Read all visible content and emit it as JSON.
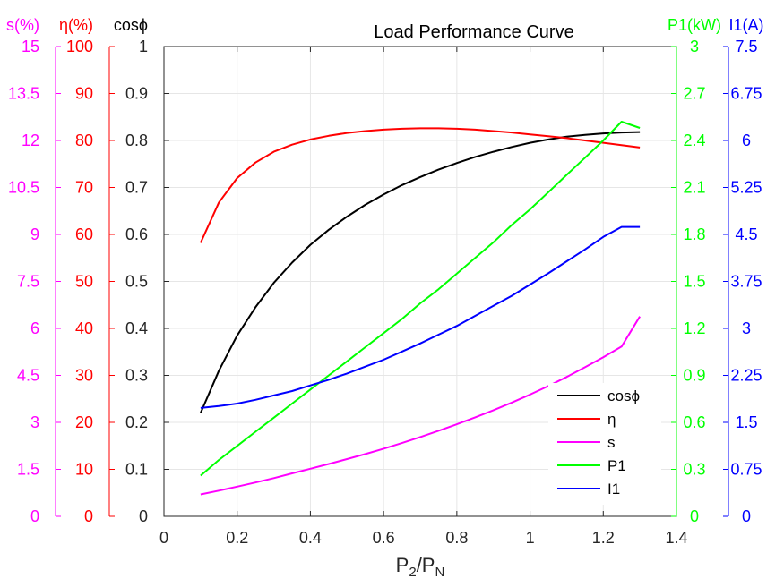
{
  "chart_data": {
    "type": "line",
    "title": "Load Performance Curve",
    "xlabel": {
      "main": "P",
      "sub1": "2",
      "slash": "/P",
      "sub2": "N"
    },
    "xlim": [
      0,
      1.4
    ],
    "xticks": [
      0,
      0.2,
      0.4,
      0.6,
      0.8,
      1,
      1.2,
      1.4
    ],
    "xtick_labels": [
      "0",
      "0.2",
      "0.4",
      "0.6",
      "0.8",
      "1",
      "1.2",
      "1.4"
    ],
    "grid": true,
    "axes": [
      {
        "key": "s",
        "label": "s(%)",
        "color": "#ff00ff",
        "side": "left",
        "lim": [
          0,
          15
        ],
        "tick_labels": [
          "0",
          "1.5",
          "3",
          "4.5",
          "6",
          "7.5",
          "9",
          "10.5",
          "12",
          "13.5",
          "15"
        ]
      },
      {
        "key": "eta",
        "label": "η(%)",
        "color": "#ff0000",
        "side": "left",
        "lim": [
          0,
          100
        ],
        "tick_labels": [
          "0",
          "10",
          "20",
          "30",
          "40",
          "50",
          "60",
          "70",
          "80",
          "90",
          "100"
        ]
      },
      {
        "key": "cos",
        "label": "cosϕ",
        "color": "#000000",
        "side": "left",
        "lim": [
          0,
          1
        ],
        "tick_labels": [
          "0",
          "0.1",
          "0.2",
          "0.3",
          "0.4",
          "0.5",
          "0.6",
          "0.7",
          "0.8",
          "0.9",
          "1"
        ]
      },
      {
        "key": "p1",
        "label": "P1(kW)",
        "color": "#00ff00",
        "side": "right",
        "lim": [
          0,
          3
        ],
        "tick_labels": [
          "0",
          "0.3",
          "0.6",
          "0.9",
          "1.2",
          "1.5",
          "1.8",
          "2.1",
          "2.4",
          "2.7",
          "3"
        ]
      },
      {
        "key": "i1",
        "label": "I1(A)",
        "color": "#0000ff",
        "side": "right",
        "lim": [
          0,
          7.5
        ],
        "tick_labels": [
          "0",
          "0.75",
          "1.5",
          "2.25",
          "3",
          "3.75",
          "4.5",
          "5.25",
          "6",
          "6.75",
          "7.5"
        ]
      }
    ],
    "x": [
      0.1,
      0.15,
      0.2,
      0.25,
      0.3,
      0.35,
      0.4,
      0.45,
      0.5,
      0.55,
      0.6,
      0.65,
      0.7,
      0.75,
      0.8,
      0.85,
      0.9,
      0.95,
      1.0,
      1.05,
      1.1,
      1.15,
      1.2,
      1.25,
      1.3
    ],
    "series": [
      {
        "name": "cosϕ",
        "axis": "cos",
        "color": "#000000",
        "values": [
          0.22,
          0.31,
          0.385,
          0.445,
          0.497,
          0.54,
          0.578,
          0.61,
          0.638,
          0.663,
          0.685,
          0.705,
          0.722,
          0.738,
          0.752,
          0.765,
          0.776,
          0.786,
          0.795,
          0.802,
          0.808,
          0.812,
          0.815,
          0.817,
          0.818
        ]
      },
      {
        "name": "η",
        "axis": "eta",
        "color": "#ff0000",
        "values": [
          58.2,
          66.8,
          72.0,
          75.3,
          77.6,
          79.1,
          80.2,
          81.0,
          81.6,
          82.0,
          82.3,
          82.5,
          82.6,
          82.6,
          82.5,
          82.3,
          82.0,
          81.7,
          81.3,
          80.9,
          80.5,
          80.0,
          79.5,
          79.0,
          78.5
        ]
      },
      {
        "name": "s",
        "axis": "s",
        "color": "#ff00ff",
        "values": [
          0.7,
          0.82,
          0.95,
          1.08,
          1.22,
          1.37,
          1.52,
          1.67,
          1.83,
          1.99,
          2.16,
          2.34,
          2.53,
          2.73,
          2.94,
          3.16,
          3.39,
          3.63,
          3.89,
          4.16,
          4.45,
          4.76,
          5.08,
          5.42,
          6.38
        ]
      },
      {
        "name": "P1",
        "axis": "p1",
        "color": "#00ff00",
        "values": [
          0.26,
          0.36,
          0.45,
          0.54,
          0.63,
          0.72,
          0.81,
          0.9,
          0.99,
          1.08,
          1.17,
          1.26,
          1.36,
          1.45,
          1.55,
          1.65,
          1.75,
          1.86,
          1.96,
          2.07,
          2.18,
          2.29,
          2.4,
          2.52,
          2.48
        ]
      },
      {
        "name": "I1",
        "axis": "i1",
        "color": "#0000ff",
        "values": [
          1.73,
          1.76,
          1.8,
          1.86,
          1.93,
          2.0,
          2.09,
          2.18,
          2.28,
          2.39,
          2.5,
          2.63,
          2.76,
          2.9,
          3.04,
          3.2,
          3.36,
          3.52,
          3.7,
          3.88,
          4.07,
          4.26,
          4.46,
          4.62,
          4.62
        ]
      }
    ],
    "legend": {
      "placement": "lower-right",
      "entries": [
        "cosϕ",
        "η",
        "s",
        "P1",
        "I1"
      ]
    }
  }
}
